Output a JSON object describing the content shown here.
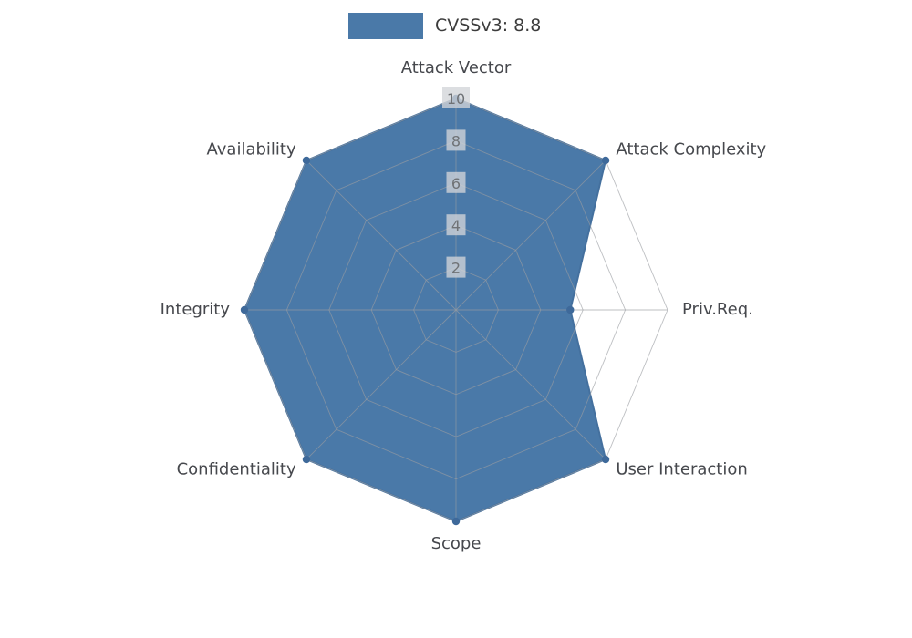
{
  "legend": {
    "label": "CVSSv3: 8.8"
  },
  "chart_data": {
    "type": "radar",
    "title": "CVSSv3: 8.8",
    "categories": [
      "Attack Vector",
      "Attack Complexity",
      "Priv.Req.",
      "User Interaction",
      "Scope",
      "Confidentiality",
      "Integrity",
      "Availability"
    ],
    "values": [
      10,
      10,
      5.4,
      10,
      10,
      10,
      10,
      10
    ],
    "ticks": [
      2,
      4,
      6,
      8,
      10
    ],
    "rlim": [
      0,
      10
    ],
    "grid": true,
    "legend_position": "top-center",
    "colors": {
      "fill": "#4a79a8",
      "stroke": "#44709e",
      "dot": "#3e699a",
      "grid": "#9a9da1",
      "tick_bg": "rgba(210,213,216,0.78)",
      "tick_text": "#6f7276",
      "label_text": "#46484d"
    }
  }
}
